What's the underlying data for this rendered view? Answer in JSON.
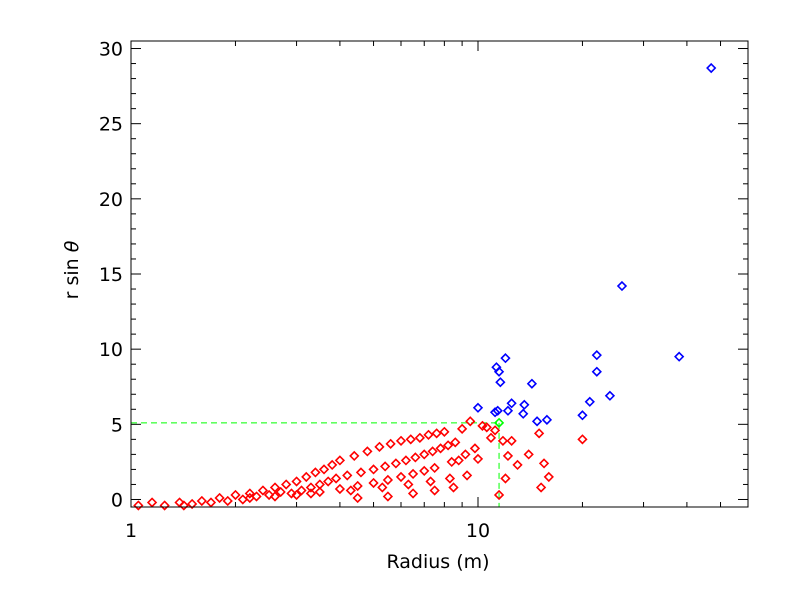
{
  "chart_data": {
    "type": "scatter",
    "xlabel": "Radius (m)",
    "ylabel_parts": [
      "r sin ",
      "θ"
    ],
    "x_scale": "log",
    "xlim": [
      1,
      60
    ],
    "ylim": [
      -0.5,
      30.5
    ],
    "x_ticks": [
      {
        "value": 1,
        "label": "1"
      },
      {
        "value": 10,
        "label": "10"
      }
    ],
    "x_minor_ticks": [
      2,
      3,
      4,
      5,
      6,
      7,
      8,
      9,
      20,
      30,
      40,
      50
    ],
    "y_ticks": [
      {
        "value": 0,
        "label": "0"
      },
      {
        "value": 5,
        "label": "5"
      },
      {
        "value": 10,
        "label": "10"
      },
      {
        "value": 15,
        "label": "15"
      },
      {
        "value": 20,
        "label": "20"
      },
      {
        "value": 25,
        "label": "25"
      },
      {
        "value": 30,
        "label": "30"
      }
    ],
    "y_minor_step": 1,
    "colors": {
      "red_series": "#ff0000",
      "blue_series": "#0000ff",
      "green_marker": "#00ff00",
      "guide_line": "#00ff00",
      "frame": "#000000"
    },
    "threshold": {
      "x": 11.5,
      "y": 5.1
    },
    "series": [
      {
        "color": "#0000ff",
        "points": [
          [
            10,
            6.1
          ],
          [
            11.3,
            8.8
          ],
          [
            11.5,
            8.5
          ],
          [
            11.6,
            7.8
          ],
          [
            11.2,
            5.8
          ],
          [
            11.4,
            5.9
          ],
          [
            12,
            9.4
          ],
          [
            12.2,
            5.9
          ],
          [
            12.5,
            6.4
          ],
          [
            13.5,
            5.7
          ],
          [
            13.6,
            6.3
          ],
          [
            14.3,
            7.7
          ],
          [
            14.8,
            5.2
          ],
          [
            15.8,
            5.3
          ],
          [
            20,
            5.6
          ],
          [
            21,
            6.5
          ],
          [
            22,
            9.6
          ],
          [
            22,
            8.5
          ],
          [
            24,
            6.9
          ],
          [
            26,
            14.2
          ],
          [
            38,
            9.5
          ],
          [
            47,
            28.7
          ]
        ]
      },
      {
        "color": "#00ff00",
        "points": [
          [
            11.5,
            5.1
          ]
        ]
      },
      {
        "color": "#ff0000",
        "points": [
          [
            1.05,
            -0.4
          ],
          [
            1.15,
            -0.2
          ],
          [
            1.25,
            -0.4
          ],
          [
            1.38,
            -0.2
          ],
          [
            1.42,
            -0.4
          ],
          [
            1.5,
            -0.3
          ],
          [
            1.6,
            -0.1
          ],
          [
            1.7,
            -0.2
          ],
          [
            1.8,
            0.1
          ],
          [
            1.9,
            -0.1
          ],
          [
            2.0,
            0.3
          ],
          [
            2.1,
            0.0
          ],
          [
            2.2,
            0.4
          ],
          [
            2.3,
            0.2
          ],
          [
            2.4,
            0.6
          ],
          [
            2.5,
            0.3
          ],
          [
            2.6,
            0.8
          ],
          [
            2.7,
            0.5
          ],
          [
            2.8,
            1.0
          ],
          [
            2.9,
            0.4
          ],
          [
            3.0,
            1.2
          ],
          [
            3.1,
            0.6
          ],
          [
            3.2,
            1.5
          ],
          [
            3.3,
            0.8
          ],
          [
            3.4,
            1.8
          ],
          [
            3.5,
            1.0
          ],
          [
            3.6,
            2.0
          ],
          [
            3.7,
            1.2
          ],
          [
            3.8,
            2.3
          ],
          [
            3.9,
            1.4
          ],
          [
            4.0,
            2.6
          ],
          [
            4.2,
            1.6
          ],
          [
            4.4,
            2.9
          ],
          [
            4.6,
            1.8
          ],
          [
            4.8,
            3.2
          ],
          [
            5.0,
            2.0
          ],
          [
            5.2,
            3.5
          ],
          [
            5.4,
            2.2
          ],
          [
            5.6,
            3.7
          ],
          [
            5.8,
            2.4
          ],
          [
            6.0,
            3.9
          ],
          [
            6.2,
            2.6
          ],
          [
            6.4,
            4.0
          ],
          [
            6.6,
            2.8
          ],
          [
            6.8,
            4.1
          ],
          [
            7.0,
            3.0
          ],
          [
            7.2,
            4.3
          ],
          [
            7.4,
            3.2
          ],
          [
            7.6,
            4.4
          ],
          [
            7.8,
            3.4
          ],
          [
            8.0,
            4.5
          ],
          [
            8.2,
            3.6
          ],
          [
            8.4,
            2.5
          ],
          [
            8.6,
            3.8
          ],
          [
            8.8,
            2.6
          ],
          [
            9.0,
            4.7
          ],
          [
            9.2,
            3.0
          ],
          [
            9.5,
            5.2
          ],
          [
            9.8,
            3.4
          ],
          [
            10.0,
            2.7
          ],
          [
            10.3,
            4.9
          ],
          [
            10.6,
            4.8
          ],
          [
            10.9,
            4.1
          ],
          [
            11.2,
            4.6
          ],
          [
            11.5,
            0.3
          ],
          [
            11.8,
            3.9
          ],
          [
            12.0,
            1.4
          ],
          [
            12.2,
            2.9
          ],
          [
            12.5,
            3.9
          ],
          [
            13.0,
            2.3
          ],
          [
            14.0,
            3.0
          ],
          [
            15.0,
            4.4
          ],
          [
            15.2,
            0.8
          ],
          [
            15.5,
            2.4
          ],
          [
            16.0,
            1.5
          ],
          [
            20,
            4.0
          ],
          [
            3.0,
            0.3
          ],
          [
            3.5,
            0.5
          ],
          [
            4.0,
            0.7
          ],
          [
            4.5,
            0.9
          ],
          [
            5.0,
            1.1
          ],
          [
            5.5,
            1.3
          ],
          [
            6.0,
            1.5
          ],
          [
            6.5,
            1.7
          ],
          [
            7.0,
            1.9
          ],
          [
            7.5,
            2.1
          ],
          [
            2.2,
            0.1
          ],
          [
            2.6,
            0.2
          ],
          [
            3.3,
            0.4
          ],
          [
            4.3,
            0.6
          ],
          [
            5.3,
            0.8
          ],
          [
            6.3,
            1.0
          ],
          [
            7.3,
            1.2
          ],
          [
            8.3,
            1.4
          ],
          [
            9.3,
            1.6
          ],
          [
            8.5,
            0.8
          ],
          [
            7.5,
            0.6
          ],
          [
            6.5,
            0.4
          ],
          [
            5.5,
            0.2
          ],
          [
            4.5,
            0.1
          ]
        ]
      }
    ]
  }
}
